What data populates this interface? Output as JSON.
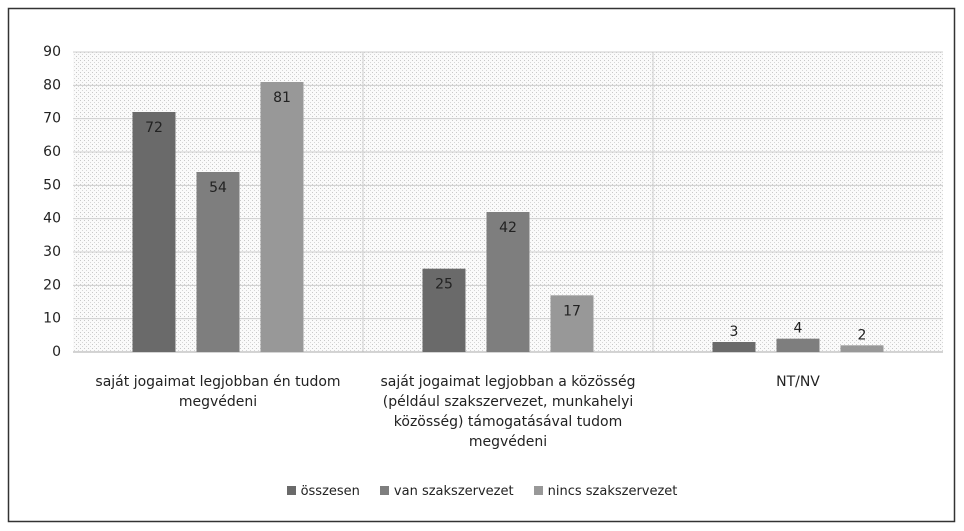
{
  "chart_data": {
    "type": "bar",
    "categories": [
      "saját jogaimat legjobban én tudom megvédeni",
      "saját jogaimat legjobban a közösség (például szakszervezet, munkahelyi közösség) támogatásával tudom megvédeni",
      "NT/NV"
    ],
    "series": [
      {
        "name": "összesen",
        "color": "#6a6a6a",
        "values": [
          72,
          25,
          3
        ]
      },
      {
        "name": "van szakszervezet",
        "color": "#7e7e7e",
        "values": [
          54,
          42,
          4
        ]
      },
      {
        "name": "nincs szakszervezet",
        "color": "#989898",
        "values": [
          81,
          17,
          2
        ]
      }
    ],
    "ylim": [
      0,
      90
    ],
    "yticks": [
      0,
      10,
      20,
      30,
      40,
      50,
      60,
      70,
      80,
      90
    ],
    "grid": true,
    "legend": "bottom"
  }
}
